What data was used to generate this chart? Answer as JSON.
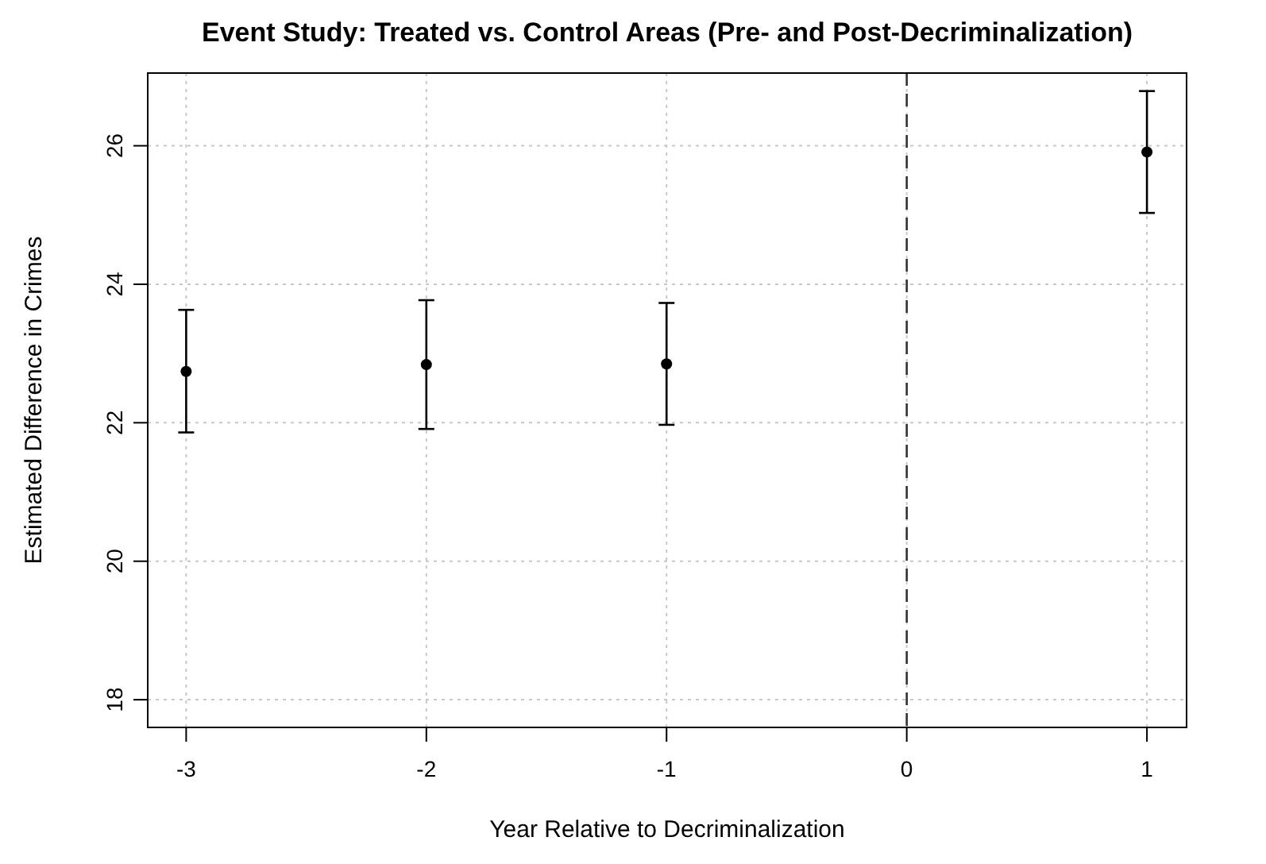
{
  "chart_data": {
    "type": "scatter",
    "title": "Event Study: Treated vs. Control Areas (Pre- and Post-Decriminalization)",
    "xlabel": "Year Relative to Decriminalization",
    "ylabel": "Estimated Difference in Crimes",
    "x": [
      -3,
      -2,
      -1,
      1
    ],
    "values": [
      22.74,
      22.84,
      22.85,
      25.91
    ],
    "errors": [
      [
        21.86,
        23.63
      ],
      [
        21.91,
        23.77
      ],
      [
        21.97,
        23.73
      ],
      [
        25.03,
        26.79
      ]
    ],
    "color": "#000000",
    "marker": "circle",
    "grid": true,
    "xlim": [
      -3.16,
      1.165
    ],
    "xticks": [
      {
        "value": -3,
        "label": "-3"
      },
      {
        "value": -2,
        "label": "-2"
      },
      {
        "value": -1,
        "label": "-1"
      },
      0,
      1
    ],
    "ylim": [
      17.6,
      27.05
    ],
    "yticks": [
      18,
      20,
      22,
      24,
      26
    ],
    "ref_lines": [
      {
        "axis": "x",
        "value": 0,
        "line_style": "dashed",
        "color": "#333333"
      }
    ]
  }
}
